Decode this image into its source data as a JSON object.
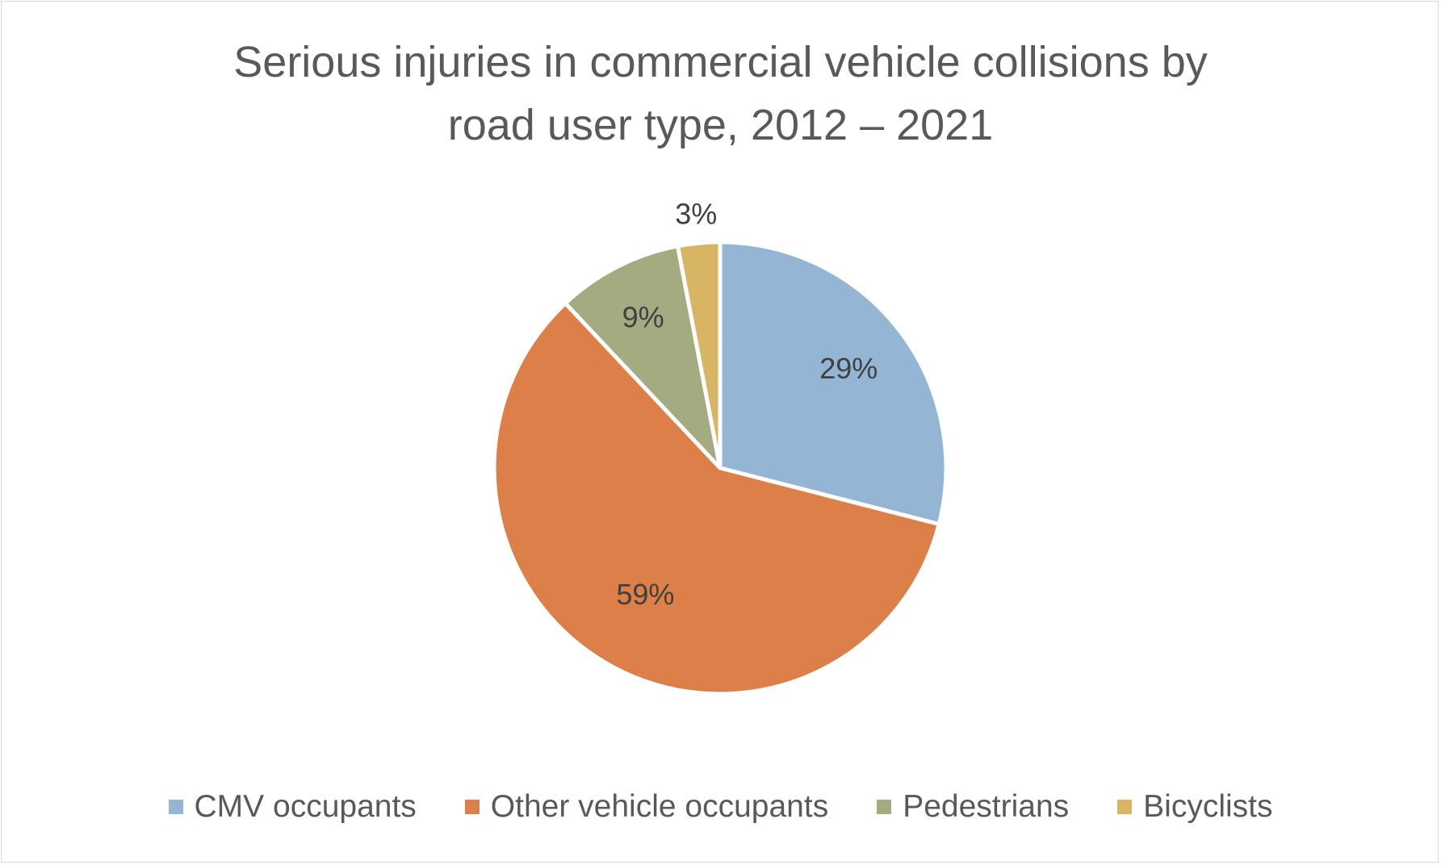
{
  "chart_data": {
    "type": "pie",
    "title": "Serious injuries in commercial vehicle collisions by road user type, 2012 – 2021",
    "title_lines": [
      "Serious injuries in commercial vehicle collisions by",
      "road user type, 2012 – 2021"
    ],
    "categories": [
      "CMV occupants",
      "Other vehicle occupants",
      "Pedestrians",
      "Bicyclists"
    ],
    "values": [
      29,
      59,
      9,
      3
    ],
    "labels": [
      "29%",
      "59%",
      "9%",
      "3%"
    ],
    "colors": [
      "#95b5d4",
      "#dd7f48",
      "#a4ab81",
      "#d8b465"
    ],
    "legend_position": "bottom",
    "start_angle": "12 o'clock",
    "direction": "clockwise"
  },
  "style": {
    "label_color": "#404040",
    "separator_color": "#ffffff"
  }
}
